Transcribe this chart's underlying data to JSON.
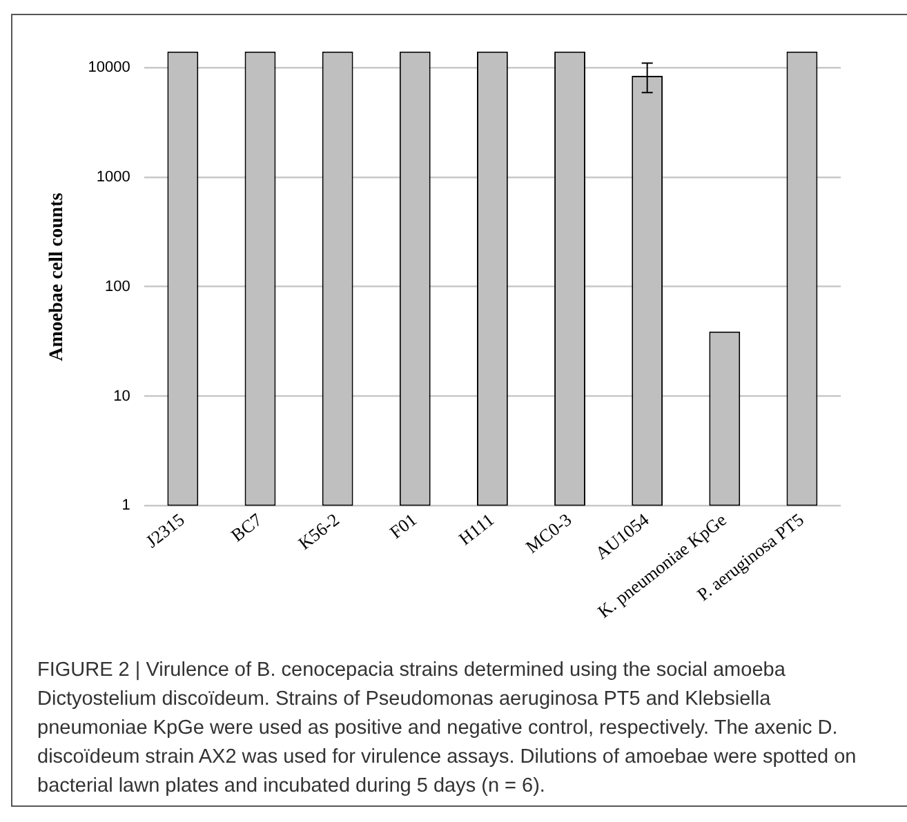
{
  "chart_data": {
    "type": "bar",
    "ylabel": "Amoebae cell counts",
    "categories": [
      "J2315",
      "BC7",
      "K56-2",
      "F01",
      "H111",
      "MC0-3",
      "AU1054",
      "K. pneumoniae KpGe",
      "P. aeruginosa PT5"
    ],
    "values": [
      14000,
      14000,
      14000,
      14000,
      14000,
      14000,
      8400,
      39,
      14000
    ],
    "errors": [
      null,
      null,
      null,
      null,
      null,
      null,
      [
        5900,
        11000
      ],
      null,
      null
    ],
    "color": "#bfbfbf",
    "log": true,
    "ylim": [
      1,
      15000
    ],
    "yticks": [
      1,
      10,
      100,
      1000,
      10000
    ],
    "grid": "y",
    "legend": false,
    "annotations": [
      "FIGURE 2 | Virulence of B. cenocepacia strains determined using the social amoeba Dictyostelium discoïdeum. Strains of Pseudomonas aeruginosa PT5 and Klebsiella pneumoniae KpGe were used as positive and negative control, respectively. The axenic D. discoïdeum strain AX2 was used for virulence assays. Dilutions of amoebae were spotted on bacterial lawn plates and incubated during 5 days (n = 6)."
    ]
  }
}
